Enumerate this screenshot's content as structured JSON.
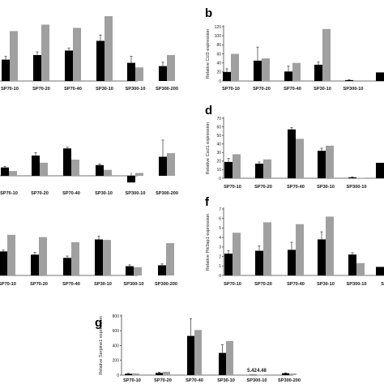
{
  "chart_data": [
    {
      "id": "a",
      "panel_label": "",
      "type": "bar",
      "ylabel": "",
      "ylim": [
        0,
        1
      ],
      "yticks": [],
      "categories": [
        "SP70-10",
        "SP70-20",
        "SP70-40",
        "SP30-10",
        "SP300-10",
        "SP300-200"
      ],
      "series": [
        {
          "color": "#000000",
          "values": [
            0.33,
            0.4,
            0.47,
            0.62,
            0.28,
            0.23
          ],
          "errors": [
            0.05,
            0.05,
            0.04,
            0.09,
            0.1,
            0.06
          ]
        },
        {
          "color": "#a0a0a0",
          "values": [
            0.77,
            0.87,
            0.82,
            1.0,
            0.21,
            0.4
          ],
          "errors": [
            0,
            0,
            0,
            0,
            0,
            0
          ]
        }
      ]
    },
    {
      "id": "b",
      "panel_label": "b",
      "type": "bar",
      "ylabel": "Relative Ccl3 expression",
      "ylim": [
        0,
        120
      ],
      "yticks": [
        0,
        20,
        40,
        60,
        80,
        100,
        120
      ],
      "categories": [
        "SP70-10",
        "SP70-20",
        "SP70-40",
        "SP30-10",
        "SP300-10",
        ""
      ],
      "series": [
        {
          "color": "#000000",
          "values": [
            20,
            45,
            21,
            36,
            2,
            19
          ],
          "errors": [
            7,
            30,
            12,
            6,
            1,
            0
          ]
        },
        {
          "color": "#a0a0a0",
          "values": [
            60,
            50,
            40,
            115,
            0,
            0
          ],
          "errors": [
            0,
            0,
            0,
            0,
            0,
            0
          ]
        }
      ]
    },
    {
      "id": "c",
      "panel_label": "",
      "type": "bar",
      "ylabel": "",
      "ylim": [
        -0.3,
        1.6
      ],
      "yticks": [],
      "categories": [
        "SP70-10",
        "SP70-20",
        "SP70-40",
        "SP30-10",
        "SP300-10",
        "SP300-200"
      ],
      "series": [
        {
          "color": "#000000",
          "values": [
            0.35,
            0.85,
            1.15,
            0.45,
            -0.28,
            0.8
          ],
          "errors": [
            0.05,
            0.12,
            0.05,
            0.05,
            0.05,
            0.7
          ]
        },
        {
          "color": "#a0a0a0",
          "values": [
            0.2,
            0.55,
            0.68,
            0.25,
            0.12,
            0.95
          ],
          "errors": [
            0,
            0,
            0,
            0,
            0,
            0
          ]
        }
      ]
    },
    {
      "id": "d",
      "panel_label": "d",
      "type": "bar",
      "ylabel": "Relative Cxcl1 expression",
      "ylim": [
        0,
        70
      ],
      "yticks": [
        0,
        10,
        20,
        30,
        40,
        50,
        60,
        70
      ],
      "categories": [
        "SP70-10",
        "SP70-20",
        "SP70-40",
        "SP30-10",
        "SP300-10",
        ""
      ],
      "series": [
        {
          "color": "#000000",
          "values": [
            19,
            17,
            57,
            32,
            1,
            18
          ],
          "errors": [
            4,
            2,
            2,
            3,
            0.5,
            0
          ]
        },
        {
          "color": "#a0a0a0",
          "values": [
            28,
            22,
            46,
            38,
            0.5,
            0
          ],
          "errors": [
            0,
            0,
            0,
            0,
            0,
            0
          ]
        }
      ]
    },
    {
      "id": "e",
      "panel_label": "",
      "type": "bar",
      "ylabel": "",
      "ylim": [
        0,
        1
      ],
      "yticks": [],
      "categories": [
        "SP70-10",
        "SP70-20",
        "SP70-40",
        "SP30-10",
        "SP300-10",
        "SP300-200"
      ],
      "series": [
        {
          "color": "#000000",
          "values": [
            0.52,
            0.45,
            0.38,
            0.78,
            0.2,
            0.22
          ],
          "errors": [
            0.03,
            0.05,
            0.04,
            0.07,
            0.03,
            0.03
          ]
        },
        {
          "color": "#a0a0a0",
          "values": [
            0.88,
            0.83,
            0.72,
            0.77,
            0.18,
            0.7
          ],
          "errors": [
            0,
            0,
            0,
            0,
            0,
            0
          ]
        }
      ]
    },
    {
      "id": "f",
      "panel_label": "f",
      "type": "bar",
      "ylabel": "Relative Pik3ap1 expression",
      "ylim": [
        0,
        7
      ],
      "yticks": [
        0,
        1,
        2,
        3,
        4,
        5,
        6,
        7
      ],
      "categories": [
        "SP70-10",
        "SP70-20",
        "SP70-40",
        "SP30-10",
        "SP300-10",
        "SP"
      ],
      "series": [
        {
          "color": "#000000",
          "values": [
            2.3,
            2.6,
            2.7,
            3.8,
            2.2,
            0.9
          ],
          "errors": [
            0.3,
            0.5,
            0.8,
            0.8,
            0.2,
            0
          ]
        },
        {
          "color": "#a0a0a0",
          "values": [
            4.5,
            5.6,
            5.4,
            6.2,
            1.3,
            0
          ],
          "errors": [
            0,
            0,
            0,
            0,
            0,
            0
          ]
        }
      ]
    },
    {
      "id": "g",
      "panel_label": "g",
      "type": "bar",
      "ylabel": "Relative Serpine1 expression",
      "ylim": [
        0,
        800
      ],
      "yticks": [
        0,
        200,
        400,
        600,
        800
      ],
      "categories": [
        "SP70-10",
        "SP70-20",
        "SP70-40",
        "SP30-10",
        "SP300-10",
        "SP300-200"
      ],
      "annotations": [
        "5.42",
        "4.48"
      ],
      "series": [
        {
          "color": "#000000",
          "values": [
            18,
            30,
            530,
            300,
            5.42,
            25
          ],
          "errors": [
            5,
            8,
            230,
            110,
            0,
            5
          ]
        },
        {
          "color": "#a0a0a0",
          "values": [
            22,
            45,
            610,
            460,
            4.48,
            20
          ],
          "errors": [
            0,
            0,
            0,
            0,
            0,
            0
          ]
        }
      ]
    }
  ]
}
